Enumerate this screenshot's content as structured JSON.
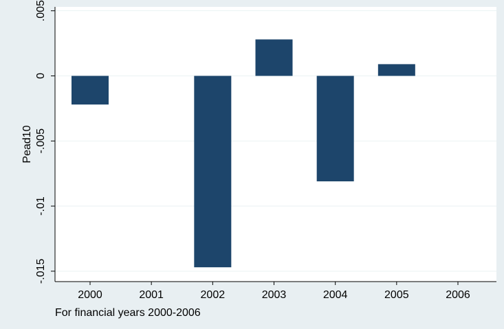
{
  "chart_data": {
    "type": "bar",
    "categories": [
      "2000",
      "2001",
      "2002",
      "2003",
      "2004",
      "2005",
      "2006"
    ],
    "values": [
      -0.0022,
      0,
      -0.0147,
      0.0028,
      -0.0081,
      0.0009,
      0
    ],
    "ylabel": "Pead10",
    "xlabel": "",
    "note": "For financial years 2000-2006",
    "y_ticks": [
      "-.015",
      "-.01",
      "-.005",
      "0",
      ".005"
    ],
    "ylim": [
      -0.0158,
      0.0053
    ],
    "grid": true,
    "legend": "none"
  },
  "colors": {
    "background": "#e8eff2",
    "plot_background": "#ffffff",
    "bar": "#1d456b",
    "grid": "#eaf2f3"
  }
}
